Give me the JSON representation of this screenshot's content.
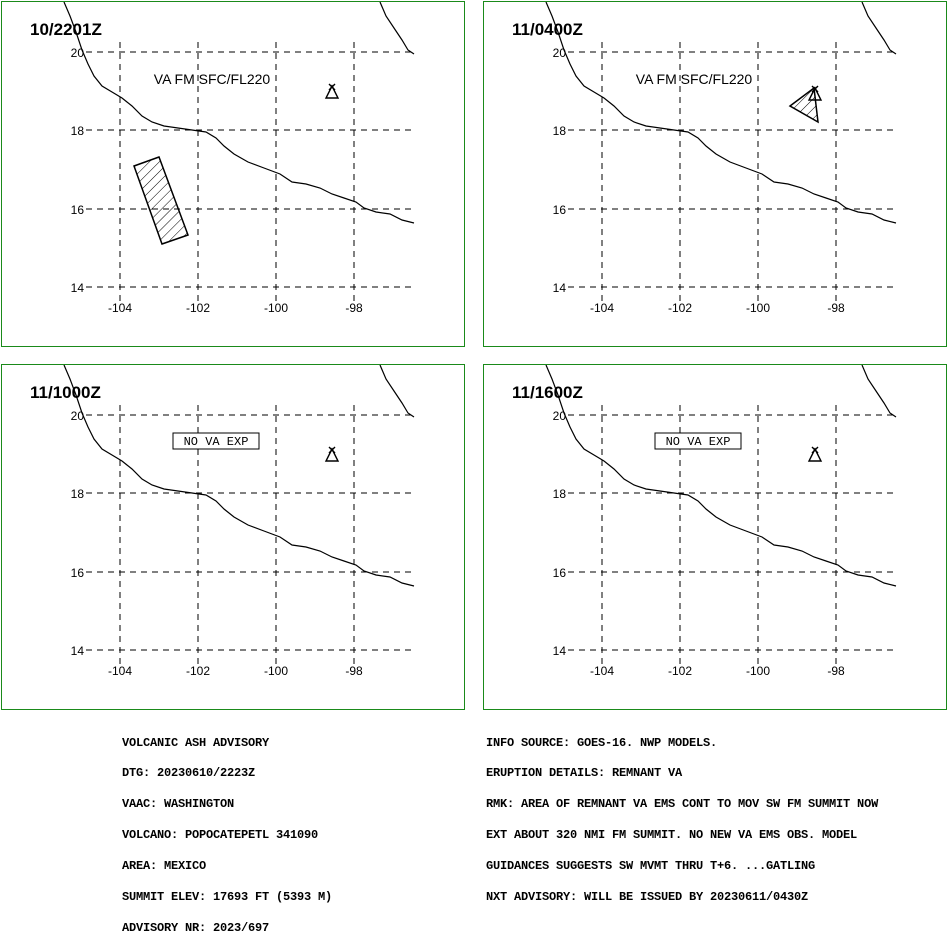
{
  "panels": [
    {
      "time": "10/2201Z",
      "label": "VA FM SFC/FL220",
      "label_type": "plain",
      "ash_shape": "rectangle"
    },
    {
      "time": "11/0400Z",
      "label": "VA FM SFC/FL220",
      "label_type": "plain",
      "ash_shape": "triangle"
    },
    {
      "time": "11/1000Z",
      "label": "NO VA EXP",
      "label_type": "boxed",
      "ash_shape": "none"
    },
    {
      "time": "11/1600Z",
      "label": "NO VA EXP",
      "label_type": "boxed",
      "ash_shape": "none"
    }
  ],
  "axes": {
    "lat_ticks": [
      "20",
      "18",
      "16",
      "14"
    ],
    "lon_ticks": [
      "-104",
      "-102",
      "-100",
      "-98"
    ]
  },
  "volcano_icon": "volcano-icon",
  "colors": {
    "panel_border": "#1a8a1a",
    "ink": "#000000"
  },
  "advisory_left": [
    "VOLCANIC ASH ADVISORY",
    "DTG: 20230610/2223Z",
    "VAAC: WASHINGTON",
    "VOLCANO: POPOCATEPETL 341090",
    "AREA: MEXICO",
    "SUMMIT ELEV: 17693 FT (5393 M)",
    "ADVISORY NR: 2023/697"
  ],
  "advisory_right": [
    "INFO SOURCE: GOES-16. NWP MODELS.",
    "ERUPTION DETAILS: REMNANT VA",
    "RMK: AREA OF REMNANT VA EMS CONT TO MOV SW FM SUMMIT NOW",
    "EXT ABOUT 320 NMI FM SUMMIT. NO NEW VA EMS OBS. MODEL",
    "GUIDANCES SUGGESTS SW MVMT THRU T+6. ...GATLING",
    "NXT ADVISORY: WILL BE ISSUED BY 20230611/0430Z"
  ]
}
